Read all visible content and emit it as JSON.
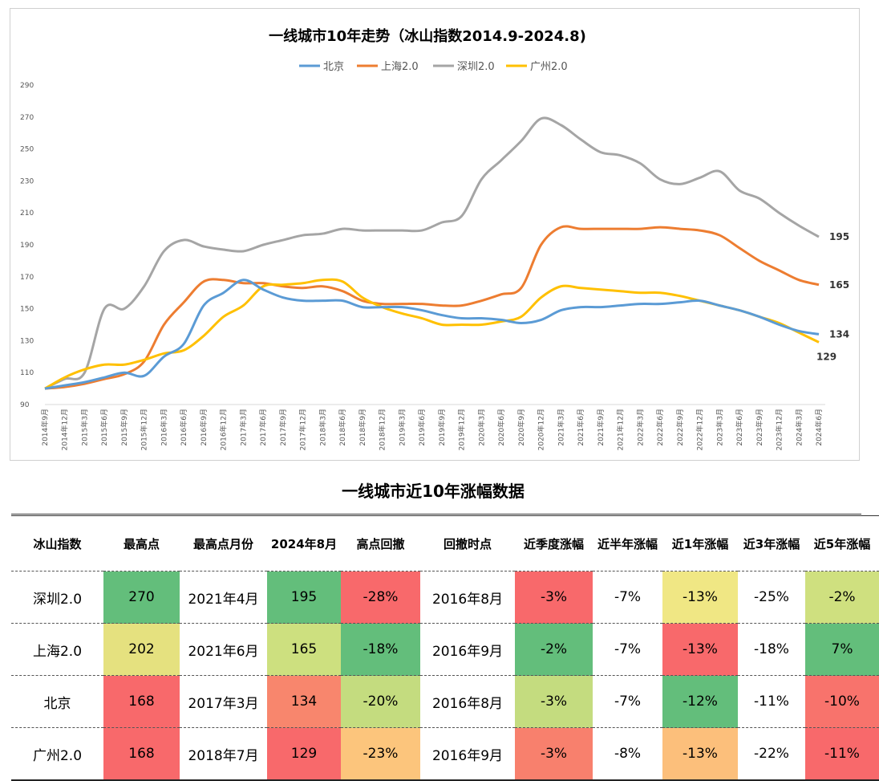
{
  "chart_data": {
    "type": "line",
    "title": "一线城市10年走势（冰山指数2014.9-2024.8)",
    "ylim": [
      90,
      290
    ],
    "yticks": [
      90,
      110,
      130,
      150,
      170,
      190,
      210,
      230,
      250,
      270,
      290
    ],
    "legend_position": "top",
    "grid": false,
    "x": [
      "2014年9月",
      "2014年12月",
      "2015年3月",
      "2015年6月",
      "2015年9月",
      "2015年12月",
      "2016年3月",
      "2016年6月",
      "2016年9月",
      "2016年12月",
      "2017年3月",
      "2017年6月",
      "2017年9月",
      "2017年12月",
      "2018年3月",
      "2018年6月",
      "2018年9月",
      "2018年12月",
      "2019年3月",
      "2019年6月",
      "2019年9月",
      "2019年12月",
      "2020年3月",
      "2020年6月",
      "2020年9月",
      "2020年12月",
      "2021年3月",
      "2021年6月",
      "2021年9月",
      "2021年12月",
      "2022年3月",
      "2022年6月",
      "2022年9月",
      "2022年12月",
      "2023年3月",
      "2023年6月",
      "2023年9月",
      "2023年12月",
      "2024年3月",
      "2024年6月"
    ],
    "series": [
      {
        "name": "北京",
        "color": "#5b9bd5",
        "end_label": "134",
        "values": [
          100,
          102,
          104,
          107,
          110,
          108,
          120,
          128,
          152,
          160,
          168,
          162,
          157,
          155,
          155,
          155,
          151,
          151,
          151,
          149,
          146,
          144,
          144,
          143,
          141,
          143,
          149,
          151,
          151,
          152,
          153,
          153,
          154,
          155,
          152,
          149,
          145,
          140,
          136,
          134
        ]
      },
      {
        "name": "上海2.0",
        "color": "#ed7d31",
        "end_label": "165",
        "values": [
          100,
          101,
          103,
          106,
          109,
          117,
          140,
          154,
          167,
          168,
          166,
          166,
          164,
          163,
          164,
          161,
          155,
          153,
          153,
          153,
          152,
          152,
          155,
          159,
          163,
          190,
          201,
          200,
          200,
          200,
          200,
          201,
          200,
          199,
          196,
          188,
          180,
          174,
          168,
          165
        ]
      },
      {
        "name": "深圳2.0",
        "color": "#a5a5a5",
        "end_label": "195",
        "values": [
          100,
          106,
          110,
          150,
          150,
          164,
          186,
          193,
          189,
          187,
          186,
          190,
          193,
          196,
          197,
          200,
          199,
          199,
          199,
          199,
          204,
          208,
          231,
          243,
          255,
          269,
          265,
          256,
          248,
          246,
          241,
          231,
          228,
          232,
          236,
          224,
          219,
          210,
          202,
          195
        ]
      },
      {
        "name": "广州2.0",
        "color": "#ffc000",
        "end_label": "129",
        "values": [
          100,
          107,
          112,
          115,
          115,
          118,
          122,
          124,
          133,
          145,
          152,
          164,
          165,
          166,
          168,
          167,
          157,
          151,
          147,
          144,
          140,
          140,
          140,
          142,
          145,
          157,
          164,
          163,
          162,
          161,
          160,
          160,
          158,
          155,
          152,
          149,
          145,
          141,
          135,
          129
        ]
      }
    ]
  },
  "table": {
    "title": "一线城市近10年涨幅数据",
    "headers": [
      "冰山指数",
      "最高点",
      "最高点月份",
      "2024年8月",
      "高点回撤",
      "回撤时点",
      "近季度涨幅",
      "近半年涨幅",
      "近1年涨幅",
      "近3年涨幅",
      "近5年涨幅"
    ],
    "rows": [
      {
        "cells": [
          "深圳2.0",
          "270",
          "2021年4月",
          "195",
          "-28%",
          "2016年8月",
          "-3%",
          "-7%",
          "-13%",
          "-25%",
          "-2%"
        ],
        "colors": [
          "",
          "#63be7b",
          "",
          "#63be7b",
          "#f8696b",
          "",
          "#f8696b",
          "",
          "#f0e784",
          "",
          "#cfe07f"
        ]
      },
      {
        "cells": [
          "上海2.0",
          "202",
          "2021年6月",
          "165",
          "-18%",
          "2016年9月",
          "-2%",
          "-7%",
          "-13%",
          "-18%",
          "7%"
        ],
        "colors": [
          "",
          "#e5e17f",
          "",
          "#cde07f",
          "#63be7b",
          "",
          "#63be7b",
          "",
          "#f8696b",
          "",
          "#63be7b"
        ]
      },
      {
        "cells": [
          "北京",
          "168",
          "2017年3月",
          "134",
          "-20%",
          "2016年8月",
          "-3%",
          "-7%",
          "-12%",
          "-11%",
          "-10%"
        ],
        "colors": [
          "",
          "#f8696b",
          "",
          "#f8866d",
          "#c4dc7f",
          "",
          "#c4dc7f",
          "",
          "#63be7b",
          "",
          "#f8736c"
        ]
      },
      {
        "cells": [
          "广州2.0",
          "168",
          "2018年7月",
          "129",
          "-23%",
          "2016年9月",
          "-3%",
          "-8%",
          "-13%",
          "-22%",
          "-11%"
        ],
        "colors": [
          "",
          "#f8696b",
          "",
          "#f8696b",
          "#fcc57c",
          "",
          "#f8806d",
          "",
          "#fcbf7b",
          "",
          "#f8696b"
        ]
      }
    ]
  }
}
